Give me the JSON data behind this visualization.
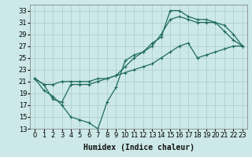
{
  "xlabel": "Humidex (Indice chaleur)",
  "background_color": "#cce8e8",
  "grid_color": "#b0d0d0",
  "line_color": "#1e6b5e",
  "xlim": [
    -0.5,
    23.5
  ],
  "ylim": [
    13,
    34
  ],
  "xticks": [
    0,
    1,
    2,
    3,
    4,
    5,
    6,
    7,
    8,
    9,
    10,
    11,
    12,
    13,
    14,
    15,
    16,
    17,
    18,
    19,
    20,
    21,
    22,
    23
  ],
  "yticks": [
    13,
    15,
    17,
    19,
    21,
    23,
    25,
    27,
    29,
    31,
    33
  ],
  "series": [
    [
      21.5,
      19.5,
      18.5,
      17.0,
      15.0,
      14.5,
      14.0,
      13.0,
      17.5,
      20.0,
      24.5,
      25.5,
      26.0,
      27.5,
      28.5,
      33.0,
      33.0,
      32.0,
      31.5,
      31.5,
      31.0,
      30.5,
      29.0,
      27.0
    ],
    [
      21.5,
      20.5,
      18.0,
      17.5,
      20.5,
      20.5,
      20.5,
      21.0,
      21.5,
      22.0,
      23.5,
      25.0,
      26.0,
      27.0,
      29.0,
      31.5,
      32.0,
      31.5,
      31.0,
      31.0,
      31.0,
      29.5,
      28.0,
      27.0
    ],
    [
      21.5,
      20.5,
      20.5,
      21.0,
      21.0,
      21.0,
      21.0,
      21.5,
      21.5,
      22.0,
      22.5,
      23.0,
      23.5,
      24.0,
      25.0,
      26.0,
      27.0,
      27.5,
      25.0,
      25.5,
      26.0,
      26.5,
      27.0,
      27.0
    ]
  ],
  "xlabel_fontsize": 7,
  "tick_fontsize": 6
}
